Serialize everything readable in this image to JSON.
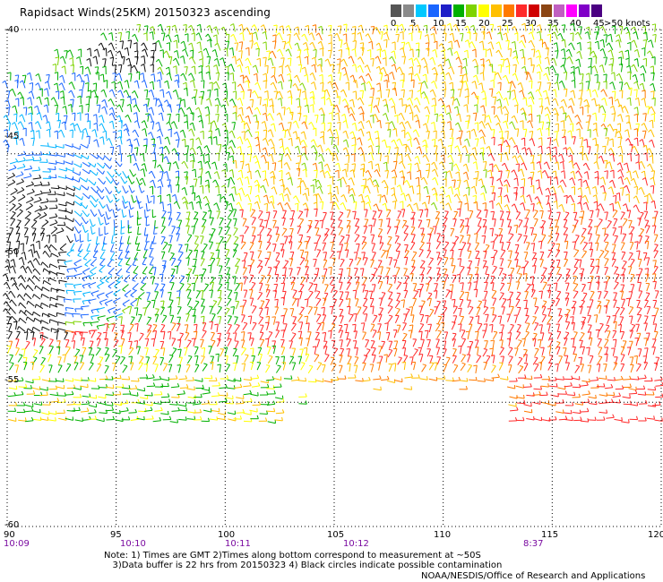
{
  "title": "Rapidsact Winds(25KM) 20150323 ascending",
  "legend": {
    "colors": [
      "#555555",
      "#8a8a8a",
      "#00c8ff",
      "#1a66ff",
      "#1f1fc8",
      "#00b000",
      "#7ed300",
      "#ffff00",
      "#ffc000",
      "#ff7a00",
      "#ff2a2a",
      "#d00000",
      "#8b4513",
      "#c060c0",
      "#ff00ff",
      "#8000c8",
      "#4b0082"
    ],
    "labels": [
      "0",
      "5",
      "10",
      "15",
      "20",
      "25",
      "30",
      "35",
      "40",
      "45",
      ">50 knots"
    ]
  },
  "lat_labels": [
    "-40",
    "-45",
    "-50",
    "-55",
    "-60"
  ],
  "lon_labels": [
    "90",
    "95",
    "100",
    "105",
    "110",
    "115",
    "120"
  ],
  "time_labels": [
    "10:09",
    "10:10",
    "10:11",
    "10:12",
    "8:37"
  ],
  "notes": [
    "Note: 1) Times are GMT 2)Times along bottom correspond to measurement at ~50S",
    "3)Data buffer is 22 hrs from 20150323 4) Black circles indicate possible contamination"
  ],
  "credit": "NOAA/NESDIS/Office of Research and Applications",
  "map_data": {
    "lon_range": [
      90,
      120
    ],
    "lat_range": [
      -40,
      -60
    ],
    "grid_step": 5,
    "grid": "dotted",
    "barb_regions": [
      {
        "lon": [
          90,
          96
        ],
        "lat": [
          -44,
          -50
        ],
        "knots": "10-20",
        "color": "#1a66ff"
      },
      {
        "lon": [
          90,
          92.5
        ],
        "lat": [
          -46,
          -52
        ],
        "knots": "0-5",
        "color": "#222222"
      },
      {
        "lon": [
          96,
          100
        ],
        "lat": [
          -42,
          -50
        ],
        "knots": "15-20",
        "color": "#00b000"
      },
      {
        "lon": [
          100,
          120
        ],
        "lat": [
          -40,
          -47
        ],
        "knots": "20-30",
        "color": "#ffc000"
      },
      {
        "lon": [
          100,
          120
        ],
        "lat": [
          -47,
          -54
        ],
        "knots": "25-35",
        "color": "#ff2a2a"
      },
      {
        "lon": [
          113,
          120
        ],
        "lat": [
          -54,
          -56.5
        ],
        "knots": "30-35",
        "color": "#ff2a2a"
      },
      {
        "lon": [
          90,
          104
        ],
        "lat": [
          -53,
          -56.5
        ],
        "knots": "10-25",
        "color": "#00b000"
      }
    ]
  }
}
